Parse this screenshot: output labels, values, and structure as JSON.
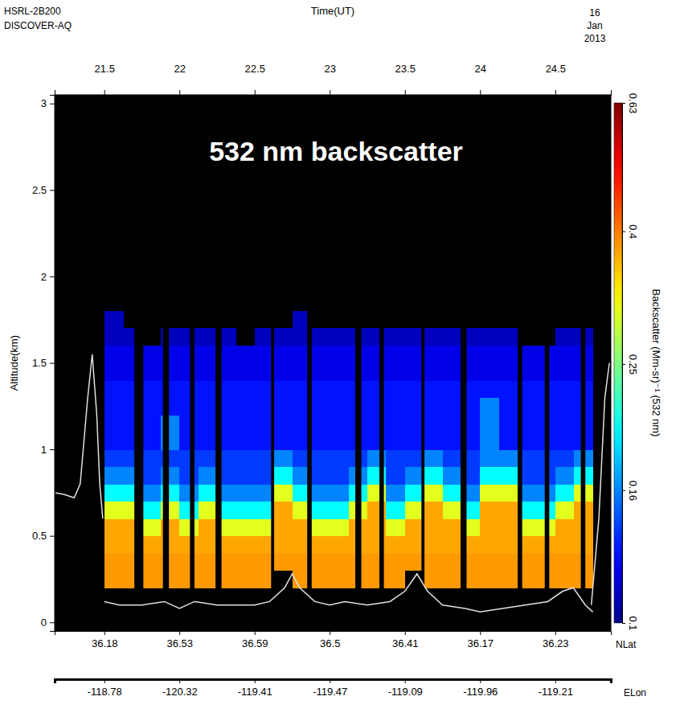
{
  "chart_data": {
    "type": "heatmap",
    "title": "532 nm backscatter",
    "annotations": [
      "HSRL-2B200",
      "DISCOVER-AQ",
      "16",
      "Jan",
      "2013"
    ],
    "xlabel": "Time(UT)",
    "ylabel": "Altitude(km)",
    "xlim": [
      21.17,
      24.87
    ],
    "xticks": [
      21.5,
      22,
      22.5,
      23,
      23.5,
      24,
      24.5
    ],
    "ylim": [
      -0.05,
      3.05
    ],
    "yticks": [
      0,
      0.5,
      1,
      1.5,
      2,
      2.5,
      3
    ],
    "lat_label": "NLat",
    "lat_ticks": [
      {
        "value": 21.5,
        "label": "36.18"
      },
      {
        "value": 22,
        "label": "36.53"
      },
      {
        "value": 22.5,
        "label": "36.59"
      },
      {
        "value": 23,
        "label": "36.5"
      },
      {
        "value": 23.5,
        "label": "36.41"
      },
      {
        "value": 24,
        "label": "36.17"
      },
      {
        "value": 24.5,
        "label": "36.23"
      }
    ],
    "lon_label": "ELon",
    "lon_ticks": [
      {
        "value": 21.5,
        "label": "-118.78"
      },
      {
        "value": 22,
        "label": "-120.32"
      },
      {
        "value": 22.5,
        "label": "-119.41"
      },
      {
        "value": 23,
        "label": "-119.47"
      },
      {
        "value": 23.5,
        "label": "-119.09"
      },
      {
        "value": 24,
        "label": "-119.96"
      },
      {
        "value": 24.5,
        "label": "-119.21"
      }
    ],
    "colorbar_label": "Backscatter (Mm-sr)⁻¹ (532 nm)",
    "colorbar_lim": [
      0.1,
      0.63
    ],
    "colorbar_ticks": [
      0.1,
      0.16,
      0.25,
      0.4,
      0.63
    ],
    "x_edges": [
      21.5,
      21.625,
      21.75,
      21.875,
      22,
      22.125,
      22.25,
      22.375,
      22.5,
      22.625,
      22.75,
      22.875,
      23,
      23.125,
      23.25,
      23.375,
      23.5,
      23.625,
      23.75,
      23.875,
      24,
      24.125,
      24.25,
      24.375,
      24.5,
      24.625,
      24.75
    ],
    "y_edges": [
      0,
      0.1,
      0.2,
      0.3,
      0.4,
      0.5,
      0.6,
      0.7,
      0.8,
      0.9,
      1.0,
      1.1,
      1.2,
      1.3,
      1.4,
      1.5,
      1.6,
      1.7,
      1.8
    ],
    "cells": [
      [
        null,
        null,
        null,
        null,
        null,
        null,
        null,
        null,
        null,
        null,
        null,
        null,
        null,
        null,
        null,
        null,
        null,
        null,
        null,
        null,
        null,
        null,
        null,
        null,
        null,
        null
      ],
      [
        null,
        null,
        null,
        null,
        null,
        null,
        null,
        null,
        null,
        null,
        null,
        null,
        null,
        null,
        null,
        null,
        null,
        null,
        null,
        null,
        null,
        null,
        null,
        null,
        null,
        null
      ],
      [
        0.38,
        0.38,
        0.38,
        0.38,
        0.38,
        0.38,
        0.38,
        0.38,
        0.38,
        null,
        0.38,
        0.38,
        0.38,
        0.38,
        0.38,
        0.38,
        null,
        0.38,
        0.38,
        0.38,
        0.38,
        0.38,
        0.38,
        0.38,
        0.38,
        0.38
      ],
      [
        0.38,
        0.38,
        0.38,
        0.38,
        0.38,
        0.38,
        0.38,
        0.38,
        0.38,
        0.38,
        0.38,
        0.38,
        0.38,
        0.38,
        0.38,
        0.38,
        0.38,
        0.38,
        0.38,
        0.38,
        0.38,
        0.38,
        0.38,
        0.38,
        0.38,
        0.38
      ],
      [
        0.37,
        0.37,
        0.37,
        0.37,
        0.37,
        0.37,
        0.37,
        0.37,
        0.37,
        0.37,
        0.37,
        0.37,
        0.37,
        0.37,
        0.37,
        0.37,
        0.37,
        0.37,
        0.37,
        0.37,
        0.37,
        0.37,
        0.37,
        0.37,
        0.37,
        0.37
      ],
      [
        0.37,
        0.37,
        0.3,
        0.37,
        0.3,
        0.37,
        0.3,
        0.3,
        0.3,
        0.37,
        0.37,
        0.3,
        0.3,
        0.37,
        0.37,
        0.3,
        0.37,
        0.37,
        0.37,
        0.3,
        0.37,
        0.37,
        0.3,
        0.3,
        0.37,
        0.37
      ],
      [
        0.3,
        0.3,
        0.2,
        0.3,
        0.2,
        0.3,
        0.2,
        0.2,
        0.2,
        0.37,
        0.3,
        0.2,
        0.2,
        0.3,
        0.37,
        0.2,
        0.3,
        0.37,
        0.3,
        0.2,
        0.37,
        0.37,
        0.2,
        0.2,
        0.3,
        0.37
      ],
      [
        0.2,
        0.2,
        0.16,
        0.2,
        0.16,
        0.2,
        0.16,
        0.16,
        0.16,
        0.3,
        0.2,
        0.16,
        0.16,
        0.2,
        0.3,
        0.16,
        0.2,
        0.3,
        0.2,
        0.16,
        0.3,
        0.3,
        0.16,
        0.16,
        0.2,
        0.3
      ],
      [
        0.16,
        0.16,
        0.14,
        0.16,
        0.14,
        0.16,
        0.14,
        0.14,
        0.14,
        0.2,
        0.16,
        0.14,
        0.14,
        0.16,
        0.2,
        0.14,
        0.16,
        0.2,
        0.16,
        0.14,
        0.2,
        0.2,
        0.14,
        0.14,
        0.16,
        0.2
      ],
      [
        0.14,
        0.14,
        0.14,
        0.14,
        0.14,
        0.14,
        0.14,
        0.14,
        0.14,
        0.16,
        0.14,
        0.14,
        0.14,
        0.14,
        0.16,
        0.14,
        0.14,
        0.16,
        0.14,
        0.14,
        0.16,
        0.16,
        0.14,
        0.14,
        0.14,
        0.16
      ],
      [
        0.13,
        0.13,
        0.13,
        0.16,
        0.13,
        0.13,
        0.13,
        0.13,
        0.13,
        0.13,
        0.13,
        0.13,
        0.13,
        0.13,
        0.13,
        0.13,
        0.13,
        0.13,
        0.13,
        0.13,
        0.16,
        0.13,
        0.13,
        0.13,
        0.13,
        0.13
      ],
      [
        0.13,
        0.13,
        0.13,
        0.16,
        0.13,
        0.13,
        0.13,
        0.13,
        0.13,
        0.13,
        0.13,
        0.13,
        0.13,
        0.13,
        0.13,
        0.13,
        0.13,
        0.13,
        0.13,
        0.13,
        0.16,
        0.13,
        0.13,
        0.13,
        0.13,
        0.13
      ],
      [
        0.13,
        0.13,
        0.13,
        0.13,
        0.13,
        0.13,
        0.13,
        0.13,
        0.13,
        0.13,
        0.13,
        0.13,
        0.13,
        0.13,
        0.13,
        0.13,
        0.13,
        0.13,
        0.13,
        0.13,
        0.16,
        0.13,
        0.13,
        0.13,
        0.13,
        0.13
      ],
      [
        0.13,
        0.13,
        0.13,
        0.13,
        0.13,
        0.13,
        0.13,
        0.13,
        0.13,
        0.13,
        0.13,
        0.13,
        0.13,
        0.13,
        0.13,
        0.13,
        0.13,
        0.13,
        0.13,
        0.13,
        0.13,
        0.13,
        0.13,
        0.13,
        0.13,
        0.13
      ],
      [
        0.12,
        0.12,
        0.12,
        0.12,
        0.12,
        0.12,
        0.12,
        0.12,
        0.12,
        0.12,
        0.12,
        0.12,
        0.12,
        0.12,
        0.12,
        0.12,
        0.12,
        0.12,
        0.12,
        0.12,
        0.12,
        0.12,
        0.12,
        0.12,
        0.12,
        0.12
      ],
      [
        0.12,
        0.12,
        0.12,
        0.12,
        0.12,
        0.12,
        0.12,
        0.12,
        0.12,
        0.12,
        0.12,
        0.12,
        0.12,
        0.12,
        0.12,
        0.12,
        0.12,
        0.12,
        0.12,
        0.12,
        0.12,
        0.12,
        0.12,
        0.12,
        0.12,
        0.12
      ],
      [
        0.11,
        0.11,
        null,
        0.11,
        0.11,
        0.11,
        0.11,
        null,
        0.11,
        0.11,
        0.11,
        0.11,
        0.11,
        0.11,
        0.11,
        0.11,
        0.11,
        0.11,
        0.11,
        0.11,
        0.11,
        0.11,
        null,
        null,
        0.11,
        0.11
      ],
      [
        0.11,
        null,
        null,
        null,
        null,
        null,
        null,
        null,
        null,
        null,
        0.11,
        null,
        null,
        null,
        null,
        null,
        null,
        null,
        null,
        null,
        null,
        null,
        null,
        null,
        null,
        null
      ]
    ],
    "gaps": [
      [
        21.7,
        21.76
      ],
      [
        21.89,
        21.93
      ],
      [
        22.07,
        22.1
      ],
      [
        22.24,
        22.28
      ],
      [
        22.61,
        22.63
      ],
      [
        22.85,
        22.88
      ],
      [
        23.17,
        23.21
      ],
      [
        23.33,
        23.36
      ],
      [
        23.61,
        23.63
      ],
      [
        23.87,
        23.91
      ],
      [
        24.25,
        24.28
      ],
      [
        24.43,
        24.46
      ],
      [
        24.67,
        24.7
      ]
    ],
    "series": [
      {
        "color": "#e0e0e0",
        "x": [
          21.5,
          21.6,
          21.75,
          21.9,
          22.0,
          22.1,
          22.25,
          22.4,
          22.5,
          22.6,
          22.7,
          22.75,
          22.8,
          22.9,
          23.0,
          23.1,
          23.25,
          23.4,
          23.5,
          23.58,
          23.65,
          23.75,
          23.9,
          24.0,
          24.15,
          24.3,
          24.45,
          24.55,
          24.62,
          24.7,
          24.75
        ],
        "values": [
          0.12,
          0.1,
          0.1,
          0.12,
          0.08,
          0.12,
          0.1,
          0.1,
          0.1,
          0.12,
          0.2,
          0.28,
          0.2,
          0.12,
          0.1,
          0.12,
          0.1,
          0.12,
          0.18,
          0.28,
          0.18,
          0.1,
          0.08,
          0.06,
          0.08,
          0.1,
          0.12,
          0.18,
          0.2,
          0.1,
          0.06
        ]
      },
      {
        "color": "#e0e0e0",
        "x": [
          21.17,
          21.23,
          21.3,
          21.34,
          21.39,
          21.42,
          21.45,
          21.47,
          21.49,
          21.6,
          24.74,
          24.79,
          24.83,
          24.86
        ],
        "values": [
          0.75,
          0.74,
          0.72,
          0.8,
          1.3,
          1.55,
          1.2,
          0.8,
          0.6,
          null,
          0.1,
          0.6,
          1.3,
          1.5
        ]
      }
    ]
  }
}
